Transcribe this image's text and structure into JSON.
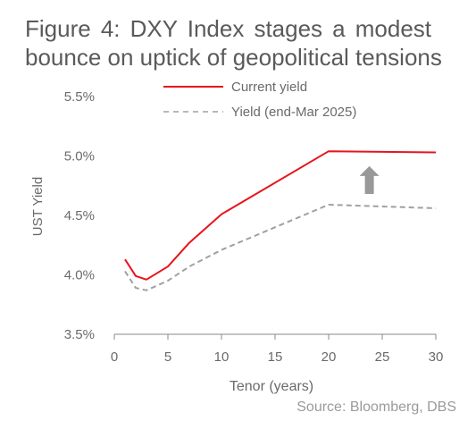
{
  "title_lines": [
    "Figure 4: DXY Index stages a modest",
    "bounce on uptick of geopolitical tensions"
  ],
  "source": "Source: Bloomberg, DBS",
  "chart_data": {
    "type": "line",
    "title": "Figure 4: DXY Index stages a modest bounce on uptick of geopolitical tensions",
    "xlabel": "Tenor (years)",
    "ylabel": "UST Yield",
    "xlim": [
      0,
      30
    ],
    "ylim": [
      3.5,
      5.5
    ],
    "xticks": [
      0,
      5,
      10,
      15,
      20,
      25,
      30
    ],
    "yticks": [
      3.5,
      4.0,
      4.5,
      5.0,
      5.5
    ],
    "ytick_labels": [
      "3.5%",
      "4.0%",
      "4.5%",
      "5.0%",
      "5.5%"
    ],
    "legend_position": "top",
    "grid": false,
    "annotation": "upward-arrow",
    "series": [
      {
        "name": "Current yield",
        "style": "solid",
        "color": "#e8141b",
        "x": [
          1,
          2,
          3,
          5,
          7,
          10,
          20,
          30
        ],
        "y": [
          4.13,
          3.99,
          3.96,
          4.07,
          4.27,
          4.51,
          5.04,
          5.03
        ]
      },
      {
        "name": "Yield (end-Mar 2025)",
        "style": "dashed",
        "color": "#a0a0a0",
        "x": [
          1,
          2,
          3,
          5,
          7,
          10,
          20,
          30
        ],
        "y": [
          4.03,
          3.89,
          3.87,
          3.95,
          4.07,
          4.21,
          4.59,
          4.56
        ]
      }
    ]
  }
}
